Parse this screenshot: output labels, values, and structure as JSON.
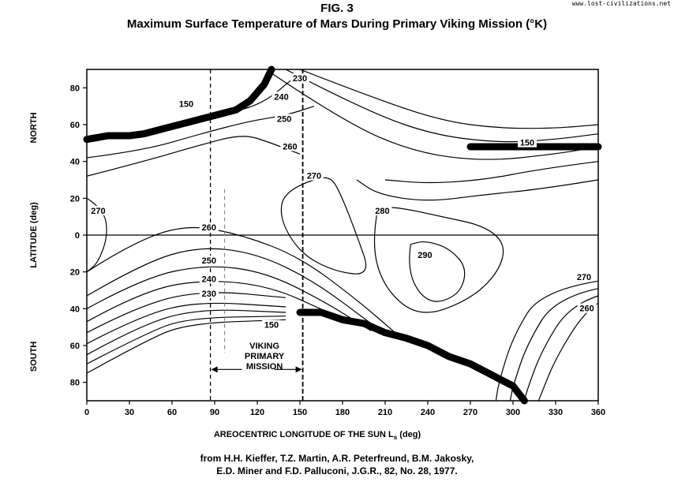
{
  "figure": {
    "label": "FIG. 3",
    "title": "Maximum Surface Temperature of Mars During Primary Viking Mission (°K)"
  },
  "watermark": "www.lost-civilizations.net",
  "citation": {
    "line1": "from H.H. Kieffer, T.Z. Martin, A.R. Peterfreund, B.M. Jakosky,",
    "line2": "E.D. Miner and F.D. Palluconi, J.G.R., 82, No. 28, 1977."
  },
  "chart_data": {
    "type": "contour",
    "title": "Maximum Surface Temperature of Mars During Primary Viking Mission (°K)",
    "xlabel": "AREOCENTRIC LONGITUDE OF THE SUN L",
    "xlabel_sub": "s",
    "xlabel_unit": "(deg)",
    "ylabel": "LATITUDE (deg)",
    "ylabel_north": "NORTH",
    "ylabel_south": "SOUTH",
    "xlim": [
      0,
      360
    ],
    "ylim": [
      -90,
      90
    ],
    "x_ticks": [
      0,
      30,
      60,
      90,
      120,
      150,
      180,
      210,
      240,
      270,
      300,
      330,
      360
    ],
    "y_ticks": [
      {
        "value": 80,
        "label": "80"
      },
      {
        "value": 60,
        "label": "60"
      },
      {
        "value": 40,
        "label": "40"
      },
      {
        "value": 20,
        "label": "20"
      },
      {
        "value": 0,
        "label": "0"
      },
      {
        "value": -20,
        "label": "20"
      },
      {
        "value": -40,
        "label": "40"
      },
      {
        "value": -60,
        "label": "60"
      },
      {
        "value": -80,
        "label": "80"
      }
    ],
    "mission": {
      "label_lines": [
        "VIKING",
        "PRIMARY",
        "MISSION"
      ],
      "start_ls": 87,
      "end_ls": 152
    },
    "contour_labels": [
      {
        "text": "150",
        "x": 70,
        "y": 70
      },
      {
        "text": "230",
        "x": 150,
        "y": 84
      },
      {
        "text": "240",
        "x": 137,
        "y": 74
      },
      {
        "text": "250",
        "x": 139,
        "y": 62
      },
      {
        "text": "260",
        "x": 143,
        "y": 47
      },
      {
        "text": "270",
        "x": 160,
        "y": 31
      },
      {
        "text": "150",
        "x": 310,
        "y": 49
      },
      {
        "text": "270",
        "x": 8,
        "y": 12
      },
      {
        "text": "260",
        "x": 86,
        "y": 3
      },
      {
        "text": "280",
        "x": 208,
        "y": 12
      },
      {
        "text": "290",
        "x": 238,
        "y": -12
      },
      {
        "text": "250",
        "x": 86,
        "y": -15
      },
      {
        "text": "240",
        "x": 86,
        "y": -25
      },
      {
        "text": "230",
        "x": 86,
        "y": -33
      },
      {
        "text": "150",
        "x": 130,
        "y": -50
      },
      {
        "text": "270",
        "x": 350,
        "y": -24
      },
      {
        "text": "260",
        "x": 352,
        "y": -41
      }
    ]
  }
}
